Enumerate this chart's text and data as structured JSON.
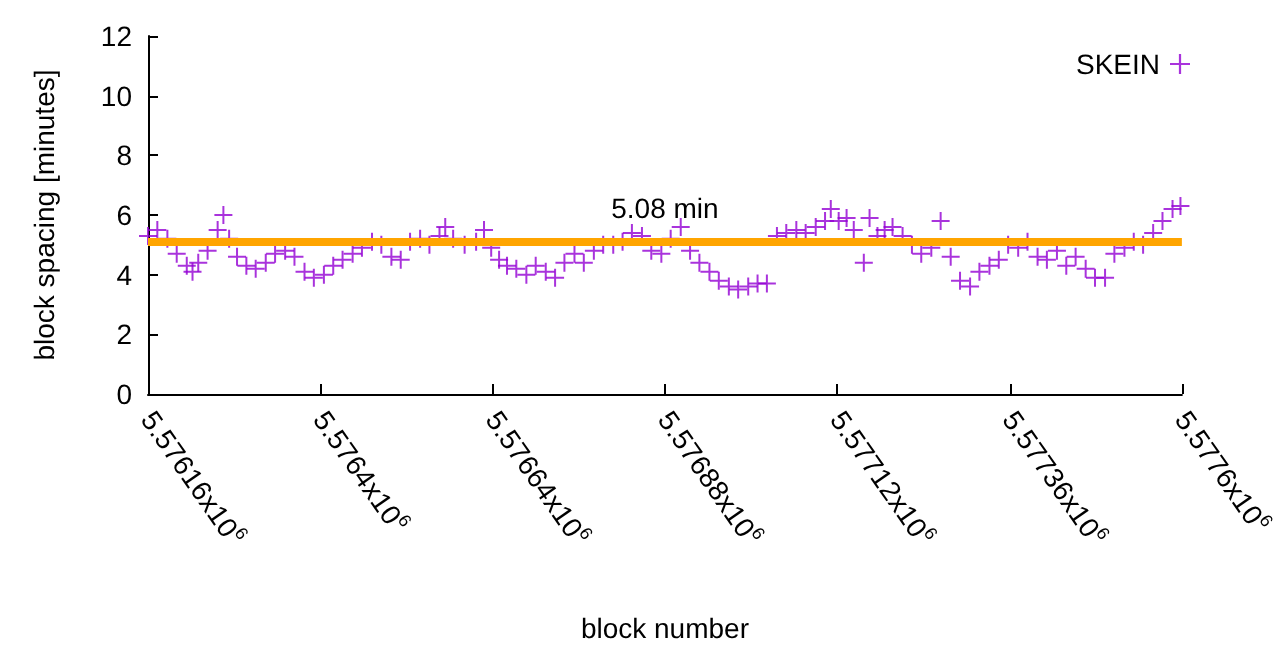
{
  "chart_data": {
    "type": "scatter",
    "xlabel": "block number",
    "ylabel": "block spacing [minutes]",
    "series": [
      {
        "name": "SKEIN",
        "color": "#9400d3",
        "x": [
          5576160,
          5576173,
          5576187,
          5576200,
          5576214,
          5576222,
          5576230,
          5576243,
          5576257,
          5576265,
          5576273,
          5576284,
          5576297,
          5576310,
          5576324,
          5576337,
          5576351,
          5576364,
          5576378,
          5576391,
          5576405,
          5576418,
          5576431,
          5576445,
          5576458,
          5576472,
          5576485,
          5576499,
          5576512,
          5576525,
          5576539,
          5576552,
          5576566,
          5576574,
          5576585,
          5576601,
          5576617,
          5576628,
          5576638,
          5576649,
          5576660,
          5576673,
          5576687,
          5576700,
          5576714,
          5576727,
          5576740,
          5576754,
          5576767,
          5576781,
          5576794,
          5576808,
          5576821,
          5576834,
          5576848,
          5576861,
          5576875,
          5576888,
          5576902,
          5576915,
          5576928,
          5576942,
          5576955,
          5576969,
          5576982,
          5576996,
          5577009,
          5577022,
          5577036,
          5577049,
          5577063,
          5577076,
          5577090,
          5577103,
          5577111,
          5577122,
          5577133,
          5577143,
          5577157,
          5577165,
          5577176,
          5577186,
          5577197,
          5577211,
          5577224,
          5577237,
          5577251,
          5577264,
          5577278,
          5577291,
          5577305,
          5577318,
          5577332,
          5577345,
          5577358,
          5577372,
          5577385,
          5577399,
          5577412,
          5577426,
          5577439,
          5577452,
          5577466,
          5577479,
          5577493,
          5577506,
          5577520,
          5577533,
          5577546,
          5577560,
          5577573,
          5577587,
          5577598
        ],
        "values": [
          5.3,
          5.5,
          5.2,
          4.7,
          4.3,
          4.1,
          4.4,
          4.8,
          5.5,
          6.0,
          5.2,
          4.6,
          4.3,
          4.2,
          4.4,
          4.7,
          4.8,
          4.6,
          4.1,
          3.9,
          4.0,
          4.3,
          4.5,
          4.7,
          4.9,
          5.1,
          5.0,
          4.6,
          4.5,
          5.1,
          5.2,
          5.0,
          5.3,
          5.6,
          5.2,
          5.0,
          5.1,
          5.5,
          4.9,
          4.5,
          4.3,
          4.2,
          4.0,
          4.3,
          4.1,
          3.9,
          4.4,
          4.7,
          4.4,
          4.8,
          5.0,
          5.0,
          5.1,
          5.4,
          5.3,
          4.8,
          4.7,
          5.2,
          5.6,
          4.8,
          4.4,
          4.1,
          3.8,
          3.6,
          3.5,
          3.6,
          3.7,
          3.7,
          5.3,
          5.4,
          5.5,
          5.4,
          5.6,
          5.8,
          6.2,
          5.8,
          5.9,
          5.5,
          4.4,
          5.9,
          5.3,
          5.5,
          5.6,
          5.3,
          5.0,
          4.7,
          4.9,
          5.8,
          4.6,
          3.8,
          3.6,
          4.1,
          4.3,
          4.5,
          5.0,
          4.9,
          5.1,
          4.6,
          4.5,
          4.8,
          4.3,
          4.6,
          4.2,
          3.9,
          3.9,
          4.7,
          4.9,
          5.1,
          5.0,
          5.4,
          5.8,
          6.2,
          6.3
        ]
      }
    ],
    "xlim": [
      5576160,
      5577600
    ],
    "xticks": [
      {
        "value": 5576160,
        "label": "5.57616x10$^{6}$"
      },
      {
        "value": 5576400,
        "label": "5.5764x10$^{6}$"
      },
      {
        "value": 5576640,
        "label": "5.57664x10$^{6}$"
      },
      {
        "value": 5576880,
        "label": "5.57688x10$^{6}$"
      },
      {
        "value": 5577120,
        "label": "5.57712x10$^{6}$"
      },
      {
        "value": 5577360,
        "label": "5.57736x10$^{6}$"
      },
      {
        "value": 5577600,
        "label": "5.5776x10$^{6}$"
      }
    ],
    "ylim": [
      0,
      12
    ],
    "yticks": [
      0,
      2,
      4,
      6,
      8,
      10,
      12
    ],
    "ref_lines": [
      {
        "axis": "y",
        "value": 5.08,
        "label": "5.08 min",
        "color": "#ffa500"
      }
    ],
    "marker": "cross",
    "legend": "top right",
    "grid": false
  }
}
